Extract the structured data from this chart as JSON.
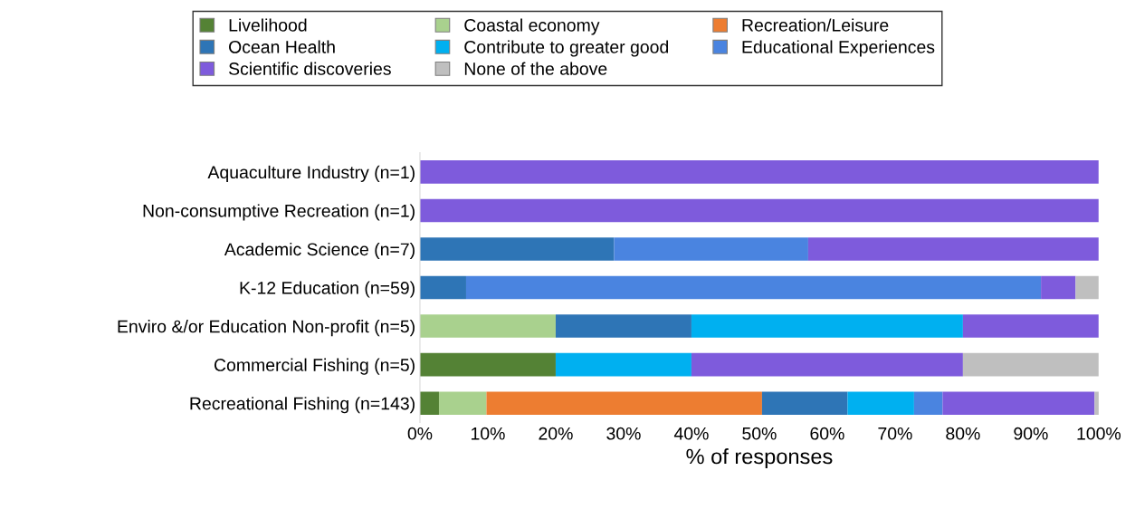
{
  "chart_data": {
    "type": "bar",
    "orientation": "horizontal",
    "stacked": true,
    "categories": [
      "Aquaculture Industry (n=1)",
      "Non-consumptive Recreation (n=1)",
      "Academic Science (n=7)",
      "K-12 Education (n=59)",
      "Enviro &/or Education Non-profit (n=5)",
      "Commercial Fishing (n=5)",
      "Recreational Fishing (n=143)"
    ],
    "xlabel": "% of responses",
    "xlim": [
      0,
      100
    ],
    "xticks": [
      {
        "value": 0,
        "label": "0%"
      },
      {
        "value": 10,
        "label": "10%"
      },
      {
        "value": 20,
        "label": "20%"
      },
      {
        "value": 30,
        "label": "30%"
      },
      {
        "value": 40,
        "label": "40%"
      },
      {
        "value": 50,
        "label": "50%"
      },
      {
        "value": 60,
        "label": "60%"
      },
      {
        "value": 70,
        "label": "70%"
      },
      {
        "value": 80,
        "label": "80%"
      },
      {
        "value": 90,
        "label": "90%"
      },
      {
        "value": 100,
        "label": "100%"
      }
    ],
    "legend": "top",
    "grid": false,
    "series": [
      {
        "name": "Livelihood",
        "color": "#548235",
        "values": [
          0,
          0,
          0,
          0,
          0,
          20,
          2.8
        ]
      },
      {
        "name": "Coastal economy",
        "color": "#a9d18e",
        "values": [
          0,
          0,
          0,
          0,
          20,
          0,
          7.0
        ]
      },
      {
        "name": "Recreation/Leisure",
        "color": "#ed7d31",
        "values": [
          0,
          0,
          0,
          0,
          0,
          0,
          40.6
        ]
      },
      {
        "name": "Ocean Health",
        "color": "#2e75b6",
        "values": [
          0,
          0,
          28.6,
          6.8,
          20,
          0,
          12.6
        ]
      },
      {
        "name": "Contribute to greater good",
        "color": "#00b0f0",
        "values": [
          0,
          0,
          0,
          0,
          40,
          20,
          9.8
        ]
      },
      {
        "name": "Educational Experiences",
        "color": "#4a84e0",
        "values": [
          0,
          0,
          28.6,
          84.7,
          0,
          0,
          4.2
        ]
      },
      {
        "name": "Scientific discoveries",
        "color": "#7e5bdc",
        "values": [
          100,
          100,
          42.8,
          5.1,
          20,
          40,
          22.4
        ]
      },
      {
        "name": "None of the above",
        "color": "#bfbfbf",
        "values": [
          0,
          0,
          0,
          3.4,
          0,
          20,
          0.7
        ]
      }
    ]
  }
}
